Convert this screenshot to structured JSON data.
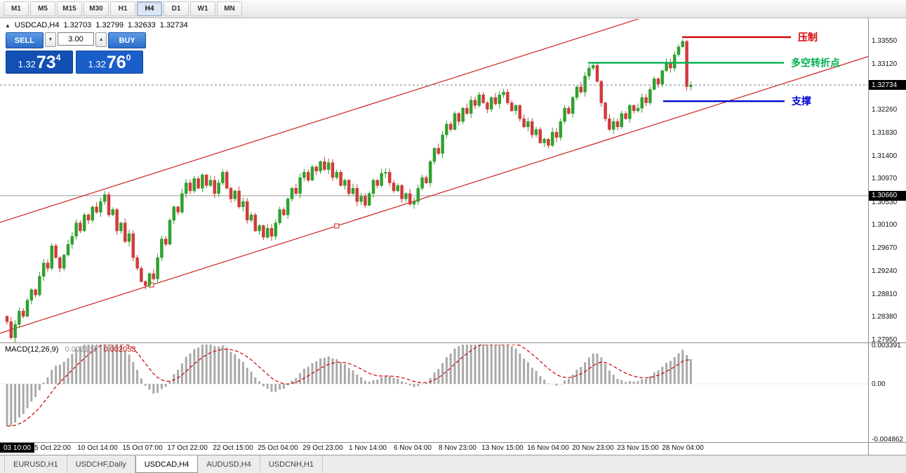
{
  "toolbar": {
    "timeframes": [
      {
        "label": "M1",
        "active": false
      },
      {
        "label": "M5",
        "active": false
      },
      {
        "label": "M15",
        "active": false
      },
      {
        "label": "M30",
        "active": false
      },
      {
        "label": "H1",
        "active": false
      },
      {
        "label": "H4",
        "active": true
      },
      {
        "label": "D1",
        "active": false
      },
      {
        "label": "W1",
        "active": false
      },
      {
        "label": "MN",
        "active": false
      }
    ]
  },
  "chart_header": {
    "marker": "▲",
    "symbol": "USDCAD,H4",
    "open": "1.32703",
    "high": "1.32799",
    "low": "1.32633",
    "close": "1.32734"
  },
  "trade_panel": {
    "sell_label": "SELL",
    "buy_label": "BUY",
    "volume": "3.00",
    "sell_price": {
      "big": "1.32",
      "main": "73",
      "sup": "4"
    },
    "buy_price": {
      "big": "1.32",
      "main": "76",
      "sup": "0"
    }
  },
  "price_axis": {
    "labels": [
      "1.33550",
      "1.33120",
      "1.32260",
      "1.31830",
      "1.31400",
      "1.30970",
      "1.30530",
      "1.30100",
      "1.29670",
      "1.29240",
      "1.28810",
      "1.28380",
      "1.27950"
    ],
    "current": "1.32734",
    "level": "1.30660"
  },
  "time_axis": {
    "marker": "03 10:00",
    "labels": [
      "5 Oct 22:00",
      "10 Oct 14:00",
      "15 Oct 07:00",
      "17 Oct 22:00",
      "22 Oct 15:00",
      "25 Oct 04:00",
      "29 Oct 23:00",
      "1 Nov 14:00",
      "6 Nov 04:00",
      "8 Nov 23:00",
      "13 Nov 15:00",
      "16 Nov 04:00",
      "20 Nov 23:00",
      "23 Nov 15:00",
      "28 Nov 04:00"
    ]
  },
  "macd_panel": {
    "name": "MACD(12,26,9)",
    "value_main": "0.002131",
    "value_signal": "0.002053",
    "axis": [
      "0.003391",
      "0.00",
      "-0.004862"
    ]
  },
  "tabs": [
    {
      "label": "EURUSD,H1",
      "active": false
    },
    {
      "label": "USDCHF,Daily",
      "active": false
    },
    {
      "label": "USDCAD,H4",
      "active": true
    },
    {
      "label": "AUDUSD,H4",
      "active": false
    },
    {
      "label": "USDCNH,H1",
      "active": false
    }
  ],
  "colors": {
    "bull": "#2fa12f",
    "bear": "#d13b3b",
    "channel": "#cc2222",
    "hline": "#9a9a9a",
    "current_line": "#708090",
    "macd_hist": "#a9a9a9",
    "macd_signal": "#cc0000",
    "resistance": "#d60000",
    "turning": "#00b050",
    "support": "#0008cc"
  },
  "chart_data": {
    "type": "candlestick",
    "symbol": "USDCAD",
    "timeframe": "H4",
    "price_grid": {
      "top": 1.3355,
      "step": 0.0043,
      "count": 14
    },
    "current_price": 1.32734,
    "last_candle": {
      "open": 1.32703,
      "high": 1.32799,
      "low": 1.32633,
      "close": 1.32734
    },
    "hline": {
      "price": 1.3066,
      "label": "1.30660"
    },
    "levels": [
      {
        "label": "压制",
        "price": 1.3363,
        "color": "#d60000"
      },
      {
        "label": "多空转折点",
        "price": 1.3315,
        "color": "#00b050"
      },
      {
        "label": "支撑",
        "price": 1.3243,
        "color": "#0008cc"
      }
    ],
    "channel": {
      "anchor_index": 35.5,
      "anchor_price": 1.28988,
      "slope_per_bar": 0.000243,
      "width_price": 0.02077,
      "handles": [
        35.5,
        81
      ]
    },
    "macd": {
      "fast": 12,
      "slow": 26,
      "signal": 9,
      "scale_top": 0.003391,
      "scale_bottom": -0.004862,
      "last_main": 0.002131,
      "last_signal": 0.002053
    },
    "closes": [
      1.283,
      1.28,
      1.2825,
      1.285,
      1.284,
      1.287,
      1.289,
      1.288,
      1.2915,
      1.294,
      1.293,
      1.2972,
      1.295,
      1.293,
      1.2955,
      1.2975,
      1.299,
      1.3015,
      1.3,
      1.303,
      1.302,
      1.3045,
      1.3035,
      1.3055,
      1.3068,
      1.303,
      1.304,
      1.3,
      1.3015,
      1.298,
      1.2995,
      1.295,
      1.293,
      1.2905,
      1.2898,
      1.292,
      1.291,
      1.295,
      1.2985,
      1.2975,
      1.302,
      1.3045,
      1.3035,
      1.307,
      1.309,
      1.3075,
      1.3098,
      1.308,
      1.3105,
      1.3085,
      1.3095,
      1.307,
      1.309,
      1.311,
      1.308,
      1.306,
      1.3075,
      1.3045,
      1.3055,
      1.302,
      1.303,
      1.3,
      1.301,
      1.2988,
      1.3005,
      1.299,
      1.3015,
      1.304,
      1.303,
      1.306,
      1.308,
      1.307,
      1.31,
      1.311,
      1.3095,
      1.312,
      1.3112,
      1.313,
      1.3115,
      1.3128,
      1.31,
      1.311,
      1.3085,
      1.3095,
      1.307,
      1.308,
      1.3055,
      1.3065,
      1.3048,
      1.307,
      1.3095,
      1.3085,
      1.3108,
      1.311,
      1.309,
      1.3075,
      1.3085,
      1.306,
      1.307,
      1.305,
      1.3055,
      1.308,
      1.31,
      1.309,
      1.313,
      1.3155,
      1.3145,
      1.318,
      1.32,
      1.319,
      1.322,
      1.3205,
      1.323,
      1.322,
      1.3245,
      1.3235,
      1.3255,
      1.324,
      1.3228,
      1.325,
      1.3238,
      1.3255,
      1.326,
      1.324,
      1.3225,
      1.3235,
      1.321,
      1.3195,
      1.3205,
      1.318,
      1.319,
      1.3165,
      1.3172,
      1.316,
      1.3185,
      1.3175,
      1.3205,
      1.323,
      1.322,
      1.325,
      1.327,
      1.326,
      1.329,
      1.3305,
      1.331,
      1.328,
      1.324,
      1.321,
      1.319,
      1.3205,
      1.3195,
      1.322,
      1.321,
      1.3235,
      1.3225,
      1.323,
      1.325,
      1.324,
      1.3265,
      1.3285,
      1.3275,
      1.33,
      1.3315,
      1.3305,
      1.333,
      1.3345,
      1.3355,
      1.32703,
      1.32734
    ]
  }
}
